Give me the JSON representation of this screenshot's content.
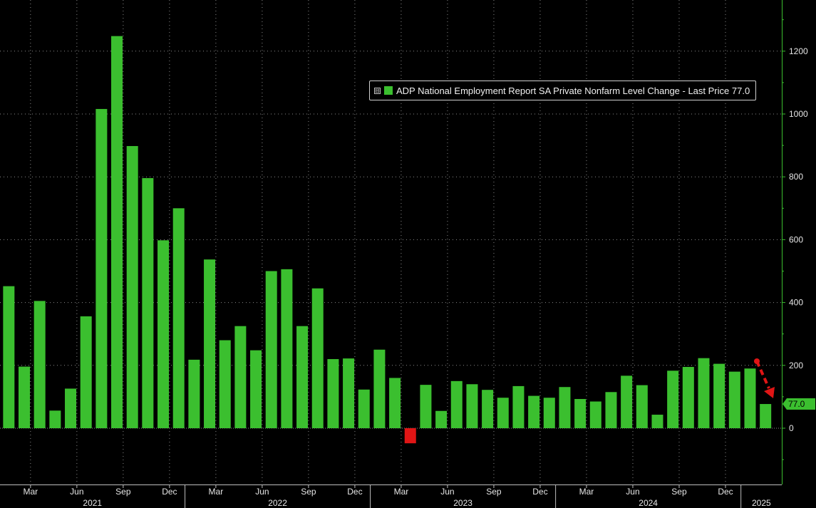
{
  "legend": {
    "toggle": "⊟",
    "label": "ADP National Employment Report SA Private Nonfarm Level Change - Last Price 77.0"
  },
  "colors": {
    "background": "#000000",
    "bar_positive": "#3bbf2f",
    "bar_negative": "#e01515",
    "axis": "#3bbf2f",
    "grid": "#8a8a8a",
    "text": "#e6e6e6",
    "arrow": "#e01515"
  },
  "chart_data": {
    "type": "bar",
    "categories": [
      "2021-01",
      "2021-02",
      "2021-03",
      "2021-04",
      "2021-05",
      "2021-06",
      "2021-07",
      "2021-08",
      "2021-09",
      "2021-10",
      "2021-11",
      "2021-12",
      "2022-01",
      "2022-02",
      "2022-03",
      "2022-04",
      "2022-05",
      "2022-06",
      "2022-07",
      "2022-08",
      "2022-09",
      "2022-10",
      "2022-11",
      "2022-12",
      "2023-01",
      "2023-02",
      "2023-03",
      "2023-04",
      "2023-05",
      "2023-06",
      "2023-07",
      "2023-08",
      "2023-09",
      "2023-10",
      "2023-11",
      "2023-12",
      "2024-01",
      "2024-02",
      "2024-03",
      "2024-04",
      "2024-05",
      "2024-06",
      "2024-07",
      "2024-08",
      "2024-09",
      "2024-10",
      "2024-11",
      "2024-12",
      "2025-01",
      "2025-02"
    ],
    "values": [
      452,
      196,
      405,
      56,
      126,
      356,
      1016,
      1248,
      898,
      796,
      598,
      700,
      218,
      537,
      280,
      325,
      248,
      500,
      506,
      325,
      445,
      220,
      222,
      123,
      250,
      160,
      -48,
      138,
      55,
      150,
      140,
      122,
      97,
      134,
      103,
      97,
      131,
      93,
      85,
      115,
      167,
      137,
      43,
      183,
      195,
      223,
      205,
      180,
      190,
      77
    ],
    "last_value_label": "77.0",
    "ylim": [
      -180,
      1350
    ],
    "yticks": [
      0,
      200,
      400,
      600,
      800,
      1000,
      1200
    ],
    "month_ticks": [
      "Mar",
      "Jun",
      "Sep",
      "Dec",
      "Mar",
      "Jun",
      "Sep",
      "Dec",
      "Mar",
      "Jun",
      "Sep",
      "Dec",
      "Mar",
      "Jun",
      "Sep",
      "Dec"
    ],
    "year_labels": [
      "2021",
      "2022",
      "2023",
      "2024",
      "2025"
    ],
    "grid": true,
    "legend_position": "top-right",
    "annotation": "red dashed downward arrow at latest value"
  }
}
